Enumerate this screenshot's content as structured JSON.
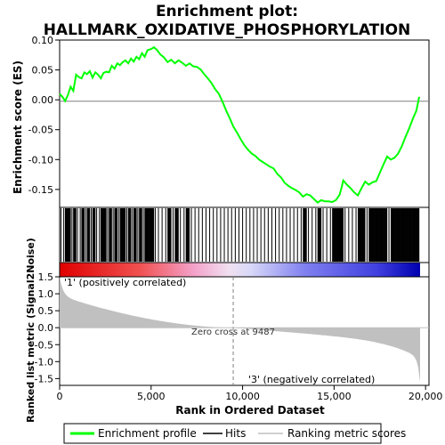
{
  "chart_data": {
    "type": "line",
    "title_line1": "Enrichment plot:",
    "title_line2": "HALLMARK_OXIDATIVE_PHOSPHORYLATION",
    "es_ylabel": "Enrichment score (ES)",
    "metric_ylabel": "Ranked list metric (Signal2Noise)",
    "xlabel": "Rank in Ordered Dataset",
    "xlim": [
      0,
      19700
    ],
    "x_ticks": [
      "0",
      "5,000",
      "10,000",
      "15,000",
      "20,000"
    ],
    "x_tick_values": [
      0,
      5000,
      10000,
      15000,
      20000
    ],
    "es_ylim": [
      -0.18,
      0.1
    ],
    "es_ticks": [
      "0.10",
      "0.05",
      "0.00",
      "-0.05",
      "-0.10",
      "-0.15"
    ],
    "es_tick_values": [
      0.1,
      0.05,
      0.0,
      -0.05,
      -0.1,
      -0.15
    ],
    "metric_ylim": [
      -1.7,
      1.5
    ],
    "metric_ticks": [
      "1.5",
      "1.0",
      "0.5",
      "0.0",
      "-0.5",
      "-1.0",
      "-1.5"
    ],
    "metric_tick_values": [
      1.5,
      1.0,
      0.5,
      0.0,
      -0.5,
      -1.0,
      -1.5
    ],
    "enrichment_profile": {
      "x": [
        0,
        150,
        300,
        450,
        600,
        750,
        900,
        1050,
        1200,
        1350,
        1500,
        1650,
        1800,
        1950,
        2100,
        2250,
        2400,
        2550,
        2700,
        2850,
        3000,
        3150,
        3300,
        3450,
        3600,
        3750,
        3900,
        4050,
        4200,
        4350,
        4500,
        4650,
        4800,
        5000,
        5150,
        5300,
        5500,
        5700,
        5900,
        6100,
        6300,
        6500,
        6700,
        6900,
        7100,
        7300,
        7500,
        7700,
        7900,
        8100,
        8300,
        8500,
        8700,
        8900,
        9100,
        9300,
        9500,
        9700,
        9900,
        10100,
        10300,
        10500,
        10700,
        10900,
        11100,
        11300,
        11500,
        11700,
        11900,
        12100,
        12300,
        12500,
        12700,
        12900,
        13100,
        13300,
        13500,
        13700,
        13900,
        14100,
        14300,
        14500,
        14700,
        14900,
        15100,
        15300,
        15400,
        15500,
        15700,
        15900,
        16100,
        16300,
        16500,
        16700,
        16900,
        17100,
        17300,
        17500,
        17700,
        17900,
        18100,
        18300,
        18500,
        18700,
        18900,
        19100,
        19300,
        19500,
        19650
      ],
      "y": [
        0.01,
        0.005,
        -0.002,
        0.008,
        0.022,
        0.015,
        0.042,
        0.038,
        0.036,
        0.046,
        0.043,
        0.048,
        0.037,
        0.046,
        0.042,
        0.036,
        0.045,
        0.047,
        0.046,
        0.057,
        0.052,
        0.061,
        0.058,
        0.063,
        0.066,
        0.061,
        0.069,
        0.064,
        0.072,
        0.068,
        0.078,
        0.072,
        0.083,
        0.085,
        0.088,
        0.084,
        0.076,
        0.071,
        0.063,
        0.067,
        0.061,
        0.066,
        0.062,
        0.057,
        0.061,
        0.056,
        0.055,
        0.051,
        0.043,
        0.036,
        0.028,
        0.018,
        0.01,
        -0.003,
        -0.018,
        -0.031,
        -0.045,
        -0.055,
        -0.066,
        -0.076,
        -0.084,
        -0.09,
        -0.094,
        -0.1,
        -0.104,
        -0.108,
        -0.112,
        -0.115,
        -0.124,
        -0.13,
        -0.139,
        -0.144,
        -0.148,
        -0.151,
        -0.155,
        -0.162,
        -0.158,
        -0.16,
        -0.166,
        -0.172,
        -0.168,
        -0.17,
        -0.17,
        -0.171,
        -0.168,
        -0.159,
        -0.148,
        -0.135,
        -0.142,
        -0.148,
        -0.155,
        -0.16,
        -0.148,
        -0.137,
        -0.142,
        -0.138,
        -0.136,
        -0.122,
        -0.108,
        -0.095,
        -0.1,
        -0.097,
        -0.09,
        -0.078,
        -0.062,
        -0.048,
        -0.032,
        -0.018,
        0.005
      ]
    },
    "metric_zero_cross": 9487,
    "zero_cross_label": "Zero cross at 9487",
    "pos_label": "'1' (positively correlated)",
    "neg_label": "'3' (negatively correlated)",
    "legend": [
      "Enrichment profile",
      "Hits",
      "Ranking metric scores"
    ],
    "colors": {
      "profile": "#00ff00",
      "hits": "#000000",
      "metric_fill": "#c0c0c0",
      "zero_line": "#808080",
      "pos_label": "#ff0000",
      "neg_label": "#0000ff"
    }
  }
}
